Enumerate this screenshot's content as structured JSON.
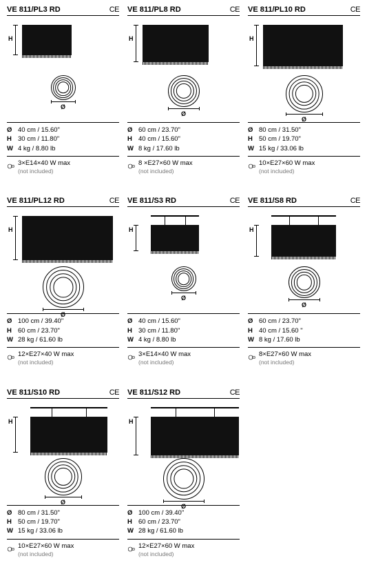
{
  "ce_label": "CE",
  "h_label": "H",
  "phi_label": "Ø",
  "phi_key": "Ø",
  "h_key": "H",
  "w_key": "W",
  "note_text": "(not included)",
  "items": [
    {
      "title": "VE 811/PL3 RD",
      "type": "ceiling",
      "shade_w": 72,
      "shade_h": 44,
      "circ_d": 36,
      "diam": "40 cm / 15.60\"",
      "height": "30 cm / 11.80\"",
      "weight": "4 kg / 8.80 lb",
      "bulb": "3×E14×40 W max"
    },
    {
      "title": "VE 811/PL8 RD",
      "type": "ceiling",
      "shade_w": 96,
      "shade_h": 54,
      "circ_d": 46,
      "diam": "60 cm / 23.70\"",
      "height": "40 cm / 15.60\"",
      "weight": "8 kg / 17.60 lb",
      "bulb": "8 ×E27×60 W max"
    },
    {
      "title": "VE 811/PL10 RD",
      "type": "ceiling",
      "shade_w": 116,
      "shade_h": 60,
      "circ_d": 54,
      "diam": "80 cm / 31.50\"",
      "height": "50 cm / 19.70\"",
      "weight": "15 kg / 33.06 lb",
      "bulb": "10×E27×60 W max"
    },
    {
      "title": "VE 811/PL12 RD",
      "type": "ceiling",
      "shade_w": 132,
      "shade_h": 64,
      "circ_d": 60,
      "diam": "100 cm / 39.40\"",
      "height": "60 cm / 23.70\"",
      "weight": "28 kg / 61.60 lb",
      "bulb": "12×E27×40 W max"
    },
    {
      "title": "VE 811/S3 RD",
      "type": "susp",
      "shade_w": 70,
      "shade_h": 38,
      "circ_d": 36,
      "diam": "40 cm / 15.60\"",
      "height": "30 cm / 11.80\"",
      "weight": "4 kg / 8.80 lb",
      "bulb": "3×E14×40 W max"
    },
    {
      "title": "VE 811/S8 RD",
      "type": "susp",
      "shade_w": 94,
      "shade_h": 46,
      "circ_d": 46,
      "diam": "60 cm / 23.70\"",
      "height": "40 cm / 15.60 \"",
      "weight": "8 kg / 17.60 lb",
      "bulb": "8×E27×60 W max"
    },
    {
      "title": "VE 811/S10 RD",
      "type": "susp",
      "shade_w": 112,
      "shade_h": 52,
      "circ_d": 54,
      "diam": "80 cm / 31.50\"",
      "height": "50 cm / 19.70\"",
      "weight": "15 kg / 33.06 lb",
      "bulb": "10×E27×60 W max"
    },
    {
      "title": "VE 811/S12 RD",
      "type": "susp",
      "shade_w": 128,
      "shade_h": 56,
      "circ_d": 60,
      "diam": "100 cm / 39.40\"",
      "height": "60 cm / 23.70\"",
      "weight": "28 kg / 61.60 lb",
      "bulb": "12×E27×60 W max"
    }
  ]
}
